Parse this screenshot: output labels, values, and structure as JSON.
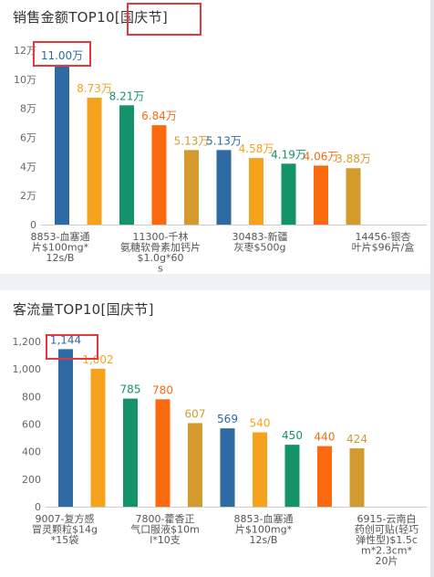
{
  "panels": [
    {
      "title": "销售金额TOP10",
      "title_tag": "[国庆节]",
      "chart_data": {
        "type": "bar",
        "categories": [
          "8853-血塞通片$100mg*12s/B",
          "",
          "",
          "11300-千林氨糖软骨素加钙片$1.0g*60s",
          "",
          "30483-新疆灰枣$500g",
          "",
          "",
          "14456-银杏叶片$96片/盒",
          ""
        ],
        "values": [
          11.0,
          8.73,
          8.21,
          6.84,
          5.13,
          5.13,
          4.58,
          4.19,
          4.06,
          3.88
        ],
        "value_labels": [
          "11.00万",
          "8.73万",
          "8.21万",
          "6.84万",
          "5.13万",
          "5.13万",
          "4.58万",
          "4.19万",
          "4.06万",
          "3.88万"
        ],
        "colors": [
          "#2e6aa3",
          "#f7a21c",
          "#14926a",
          "#fb6a0f",
          "#d39b2e",
          "#2e6aa3",
          "#f7a21c",
          "#14926a",
          "#fb6a0f",
          "#d39b2e"
        ],
        "yticks": [
          "0",
          "2万",
          "4万",
          "6万",
          "8万",
          "10万",
          "12万"
        ],
        "ylim": [
          0,
          12
        ],
        "tick_labels": [
          [
            "8853-血塞通",
            "片$100mg*",
            "12s/B"
          ],
          [
            "11300-千林",
            "氨糖软骨素加钙片",
            "$1.0g*60",
            "s"
          ],
          [
            "30483-新疆",
            "灰枣$500g"
          ],
          [
            "14456-银杏",
            "叶片$96片/盒"
          ]
        ],
        "grid": false,
        "legend": "none"
      }
    },
    {
      "title": "客流量TOP10",
      "title_tag": "[国庆节]",
      "chart_data": {
        "type": "bar",
        "categories": [
          "9007-复方感冒灵颗粒$14g*15袋",
          "",
          "",
          "7800-藿香正气口服液$10ml*10支",
          "",
          "8853-血塞通片$100mg*12s/B",
          "",
          "",
          "6915-云南白药创可贴(轻巧弹性型)$1.5cm*2.3cm*20片",
          ""
        ],
        "values": [
          1144,
          1002,
          785,
          780,
          607,
          569,
          540,
          450,
          440,
          424
        ],
        "value_labels": [
          "1,144",
          "1,002",
          "785",
          "780",
          "607",
          "569",
          "540",
          "450",
          "440",
          "424"
        ],
        "colors": [
          "#2e6aa3",
          "#f7a21c",
          "#14926a",
          "#fb6a0f",
          "#d39b2e",
          "#2e6aa3",
          "#f7a21c",
          "#14926a",
          "#fb6a0f",
          "#d39b2e"
        ],
        "yticks": [
          "0",
          "200",
          "400",
          "600",
          "800",
          "1,000",
          "1,200"
        ],
        "ylim": [
          0,
          1200
        ],
        "tick_labels": [
          [
            "9007-复方感",
            "冒灵颗粒$14g",
            "*15袋"
          ],
          [
            "7800-藿香正",
            "气口服液$10m",
            "l*10支"
          ],
          [
            "8853-血塞通",
            "片$100mg*",
            "12s/B"
          ],
          [
            "6915-云南白",
            "药创可贴(轻巧",
            "弹性型)$1.5c",
            "m*2.3cm*",
            "20片"
          ]
        ],
        "grid": false,
        "legend": "none"
      }
    }
  ]
}
